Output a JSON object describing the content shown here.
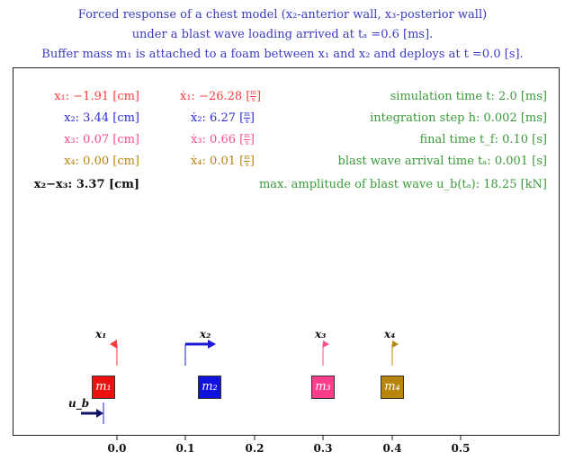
{
  "title": {
    "line1": "Forced response of a chest model (x₂-anterior wall, x₃-posterior wall)",
    "line2": "under a blast wave loading arrived at tₐ =0.6 [ms].",
    "line3": "Buffer mass m₁ is attached to a foam between x₁ and x₂ and deploys at t =0.0 [s]."
  },
  "displacements": [
    {
      "label": "x₁: −1.91 [cm]",
      "color": "#ff3b3b"
    },
    {
      "label": "x₂: 3.44 [cm]",
      "color": "#2c2ce0"
    },
    {
      "label": "x₃: 0.07 [cm]",
      "color": "#ff4d8d"
    },
    {
      "label": "x₄: 0.00 [cm]",
      "color": "#b8860b"
    },
    {
      "label": "x₂−x₃: 3.37 [cm]",
      "color": "#111111"
    }
  ],
  "velocities": [
    {
      "label": "ẋ₁: −26.28",
      "num": "m",
      "den": "s",
      "color": "#ff3b3b"
    },
    {
      "label": "ẋ₂: 6.27",
      "num": "m",
      "den": "s",
      "color": "#2c2ce0"
    },
    {
      "label": "ẋ₃: 0.66",
      "num": "m",
      "den": "s",
      "color": "#ff4d8d"
    },
    {
      "label": "ẋ₄: 0.01",
      "num": "m",
      "den": "s",
      "color": "#b8860b"
    }
  ],
  "info": {
    "sim_time": "simulation time t: 2.0 [ms]",
    "step": "integration step h: 0.002 [ms]",
    "final_time": "final time t_f: 0.10 [s]",
    "arrival": "blast wave arrival time tₐ: 0.001 [s]",
    "amplitude": "max. amplitude of blast wave u_b(tₐ): 18.25 [kN]"
  },
  "masses": [
    {
      "label": "m₁",
      "color": "#ee1111",
      "position": 0.0
    },
    {
      "label": "m₂",
      "color": "#1111dd",
      "position": 0.1
    },
    {
      "label": "m₃",
      "color": "#ff3d8a",
      "position": 0.3
    },
    {
      "label": "m₄",
      "color": "#b8860b",
      "position": 0.4
    }
  ],
  "markers": [
    {
      "label": "x₁",
      "position": 0.0,
      "direction": "left",
      "color": "#ff3b3b"
    },
    {
      "label": "x₂",
      "position": 0.1,
      "direction": "right",
      "color": "#1a1ad8"
    },
    {
      "label": "x₃",
      "position": 0.3,
      "direction": "right",
      "color": "#ff4d8d"
    },
    {
      "label": "x₄",
      "position": 0.4,
      "direction": "right",
      "color": "#b8860b"
    }
  ],
  "force": {
    "label": "u_b",
    "color": "#111166"
  },
  "axis": {
    "ticks": [
      "0.0",
      "0.1",
      "0.2",
      "0.3",
      "0.4",
      "0.5"
    ],
    "tick_values": [
      0.0,
      0.1,
      0.2,
      0.3,
      0.4,
      0.5
    ]
  }
}
